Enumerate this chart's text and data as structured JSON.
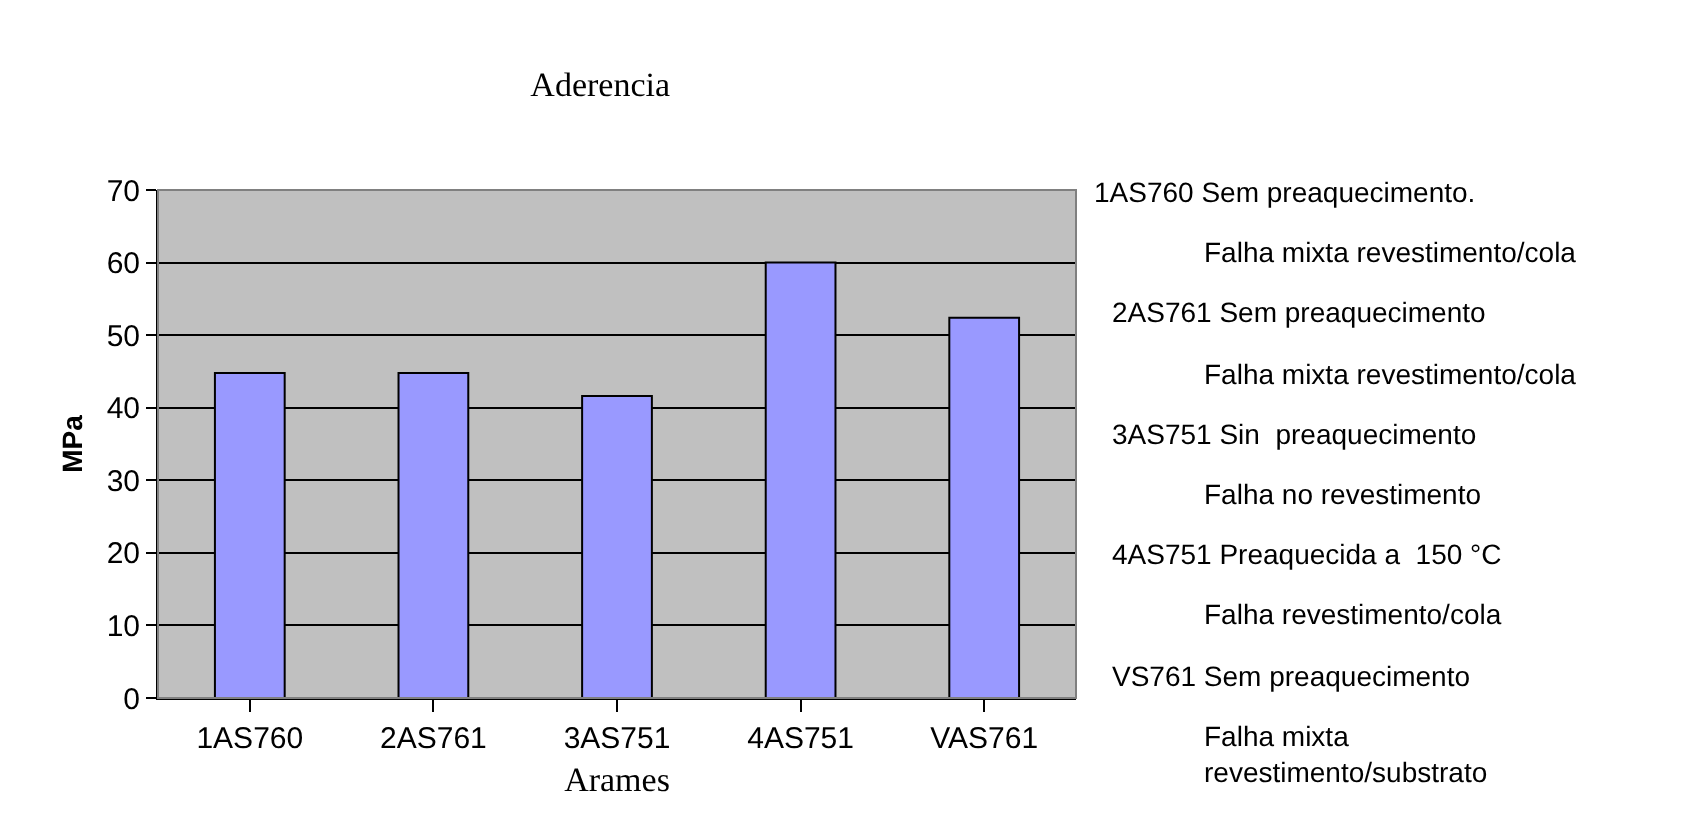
{
  "chart_data": {
    "type": "bar",
    "title": "Aderencia",
    "xlabel": "Arames",
    "ylabel": "MPa",
    "categories": [
      "1AS760",
      "2AS761",
      "3AS751",
      "4AS751",
      "VAS761"
    ],
    "values": [
      44.8,
      44.8,
      41.6,
      60,
      52.4
    ],
    "color": "#9999ff",
    "ylim": [
      0,
      70
    ],
    "yticks": [
      0,
      10,
      20,
      30,
      40,
      50,
      60,
      70
    ],
    "grid": "y",
    "legend": false,
    "annotations": [
      "1AS760 Sem preaquecimento.",
      "Falha mixta revestimento/cola",
      "2AS761 Sem preaquecimento",
      "Falha mixta revestimento/cola",
      "3AS751 Sin  preaquecimento",
      "Falha no revestimento",
      "4AS751 Preaquecida a  150 °C",
      "Falha revestimento/cola",
      "VS761 Sem preaquecimento",
      "Falha mixta\nrevestimento/substrato"
    ]
  }
}
